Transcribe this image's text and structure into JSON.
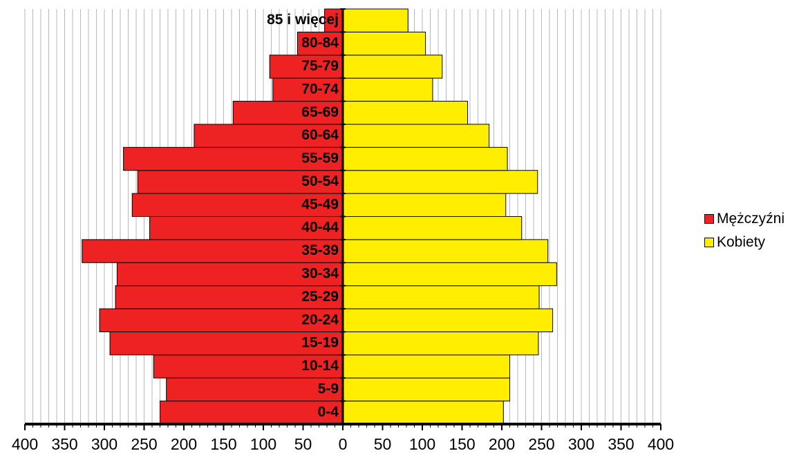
{
  "chart_data": {
    "type": "bar",
    "orientation": "horizontal",
    "layout": "population-pyramid",
    "categories": [
      "0-4",
      "5-9",
      "10-14",
      "15-19",
      "20-24",
      "25-29",
      "30-34",
      "35-39",
      "40-44",
      "45-49",
      "50-54",
      "55-59",
      "60-64",
      "65-69",
      "70-74",
      "75-79",
      "80-84",
      "85 i więcej"
    ],
    "series": [
      {
        "name": "Mężczyźni",
        "color": "#ee2222",
        "side": "left",
        "values": [
          230,
          222,
          238,
          293,
          306,
          286,
          284,
          328,
          243,
          265,
          258,
          276,
          187,
          138,
          88,
          92,
          57,
          23
        ]
      },
      {
        "name": "Kobiety",
        "color": "#ffee00",
        "side": "right",
        "values": [
          202,
          210,
          210,
          246,
          264,
          247,
          269,
          258,
          225,
          205,
          245,
          207,
          184,
          157,
          113,
          125,
          104,
          82
        ]
      }
    ],
    "x_ticks": [
      "400",
      "350",
      "300",
      "250",
      "200",
      "150",
      "100",
      "50",
      "0",
      "50",
      "100",
      "150",
      "200",
      "250",
      "300",
      "350",
      "400"
    ],
    "xlim": [
      -400,
      400
    ],
    "grid": "vertical minor lines every 10",
    "legend_position": "right",
    "title": "",
    "xlabel": "",
    "ylabel": ""
  }
}
